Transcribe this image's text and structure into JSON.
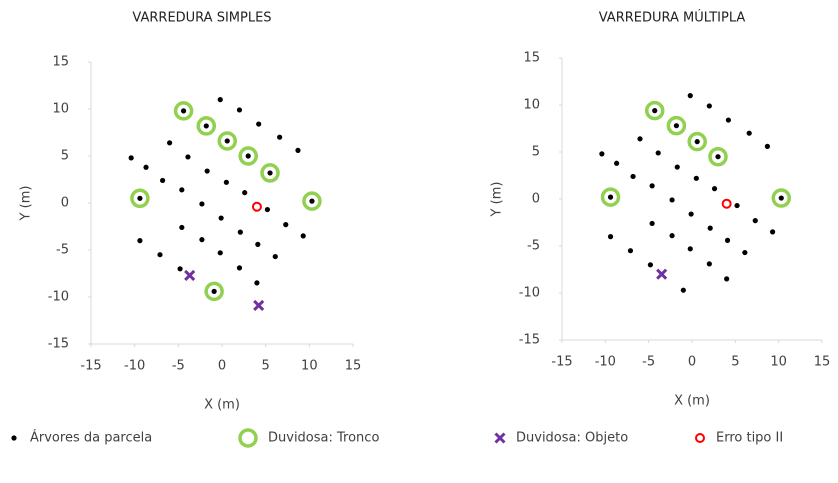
{
  "chart_data": [
    {
      "type": "scatter",
      "title": "VARREDURA SIMPLES",
      "x_label": "X (m)",
      "y_label": "Y (m)",
      "xlim": [
        -15,
        15
      ],
      "ylim": [
        -15,
        15
      ],
      "xticks": [
        -15,
        -10,
        -5,
        0,
        5,
        10,
        15
      ],
      "yticks": [
        -15,
        -10,
        -5,
        0,
        5,
        10,
        15
      ],
      "series": [
        {
          "name": "Árvores da parcela",
          "color": "#000000",
          "marker": "dot",
          "x": [
            -0.2,
            2,
            4.2,
            6.6,
            8.7,
            -10.4,
            -8.7,
            -6,
            -3.9,
            -6.8,
            -4.6,
            -1.7,
            0.5,
            2.6,
            -2.3,
            -0.1,
            2.1,
            4.1,
            6.1,
            5.2,
            7.3,
            9.3,
            -4.6,
            -2.3,
            -9.4,
            -7.1,
            -4.8,
            -0.2,
            2,
            4,
            -4.4,
            -1.8,
            0.6,
            3,
            5.5,
            -9.4,
            10.3,
            -0.9
          ],
          "y": [
            11,
            9.9,
            8.4,
            7,
            5.6,
            4.8,
            3.8,
            6.4,
            4.9,
            2.4,
            1.4,
            3.4,
            2.2,
            1.1,
            -0.1,
            -1.6,
            -3.1,
            -4.4,
            -5.7,
            -0.7,
            -2.3,
            -3.5,
            -2.6,
            -3.9,
            -4,
            -5.5,
            -7,
            -5.3,
            -6.9,
            -8.5,
            9.8,
            8.2,
            6.6,
            5,
            3.2,
            0.5,
            0.2,
            -9.4
          ]
        },
        {
          "name": "Duvidosa: Tronco",
          "color": "#92d050",
          "marker": "ring",
          "x": [
            -4.4,
            -1.8,
            0.6,
            3,
            5.5,
            -9.4,
            10.3,
            -0.9
          ],
          "y": [
            9.8,
            8.2,
            6.6,
            5,
            3.2,
            0.5,
            0.2,
            -9.4
          ]
        },
        {
          "name": "Duvidosa: Objeto",
          "color": "#7030a0",
          "marker": "cross",
          "x": [
            -3.7,
            4.2
          ],
          "y": [
            -7.7,
            -10.9
          ]
        },
        {
          "name": "Erro tipo II",
          "color": "#ff0000",
          "marker": "small-ring",
          "x": [
            4
          ],
          "y": [
            -0.4
          ]
        }
      ]
    },
    {
      "type": "scatter",
      "title": "VARREDURA MÚLTIPLA",
      "x_label": "X (m)",
      "y_label": "Y (m)",
      "xlim": [
        -15,
        15
      ],
      "ylim": [
        -15,
        15
      ],
      "xticks": [
        -15,
        -10,
        -5,
        0,
        5,
        10,
        15
      ],
      "yticks": [
        -15,
        -10,
        -5,
        0,
        5,
        10,
        15
      ],
      "series": [
        {
          "name": "Árvores da parcela",
          "color": "#000000",
          "marker": "dot",
          "x": [
            -0.2,
            2,
            4.2,
            6.6,
            8.7,
            -10.4,
            -8.7,
            -6,
            -3.9,
            -6.8,
            -4.6,
            -1.7,
            0.5,
            2.6,
            -2.3,
            -0.1,
            2.1,
            4.1,
            6.1,
            5.2,
            7.3,
            9.3,
            -4.6,
            -2.3,
            -9.4,
            -7.1,
            -4.8,
            -0.2,
            2,
            4,
            -4.3,
            -1.8,
            0.6,
            3,
            -9.4,
            10.3,
            -1
          ],
          "y": [
            11,
            9.9,
            8.4,
            7,
            5.6,
            4.8,
            3.8,
            6.4,
            4.9,
            2.4,
            1.4,
            3.4,
            2.2,
            1.1,
            -0.1,
            -1.6,
            -3.1,
            -4.4,
            -5.7,
            -0.7,
            -2.3,
            -3.5,
            -2.6,
            -3.9,
            -4,
            -5.5,
            -7,
            -5.3,
            -6.9,
            -8.5,
            9.4,
            7.8,
            6.1,
            4.5,
            0.2,
            0.1,
            -9.7
          ]
        },
        {
          "name": "Duvidosa: Tronco",
          "color": "#92d050",
          "marker": "ring",
          "x": [
            -4.3,
            -1.8,
            0.6,
            3,
            -9.4,
            10.3
          ],
          "y": [
            9.4,
            7.8,
            6.1,
            4.5,
            0.2,
            0.1
          ]
        },
        {
          "name": "Duvidosa: Objeto",
          "color": "#7030a0",
          "marker": "cross",
          "x": [
            -3.5
          ],
          "y": [
            -8
          ]
        },
        {
          "name": "Erro tipo II",
          "color": "#ff0000",
          "marker": "small-ring",
          "x": [
            4
          ],
          "y": [
            -0.5
          ]
        }
      ]
    }
  ]
}
